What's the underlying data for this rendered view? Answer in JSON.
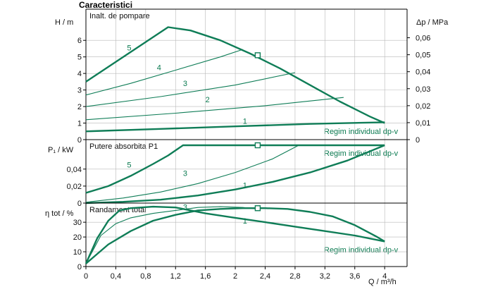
{
  "heading": "Caracteristici",
  "colors": {
    "curve": "#0f7d57",
    "axis": "#000000",
    "grid": "#b8b8b8",
    "panel_label": "#111111"
  },
  "x_axis": {
    "label": "Q / m³/h",
    "ticks": [
      "0",
      "0,4",
      "0,8",
      "1,2",
      "1,6",
      "2",
      "2,4",
      "2,8",
      "3,2",
      "3,6",
      "4"
    ]
  },
  "chart_data": [
    {
      "type": "line",
      "title": "Inalt. de pompare",
      "ylabel": "H / m",
      "ylabel_right": "Δp / MPa",
      "xlim": [
        0,
        4.3
      ],
      "ylim": [
        0,
        7.8
      ],
      "yticks": [
        "0",
        "1",
        "2",
        "3",
        "4",
        "5",
        "6"
      ],
      "yticks_right": [
        "0",
        "0,01",
        "0,02",
        "0,03",
        "0,04",
        "0,05",
        "0,06"
      ],
      "annotation": "Regim individual dp-v",
      "series": [
        {
          "name": "5",
          "x": [
            0,
            1.1,
            1.4,
            1.8,
            2.2,
            2.6,
            3.0,
            3.4,
            3.8,
            4.0
          ],
          "y": [
            3.5,
            6.8,
            6.6,
            6.0,
            5.2,
            4.3,
            3.3,
            2.3,
            1.4,
            1.0
          ]
        },
        {
          "name": "4",
          "x": [
            0,
            0.6,
            1.2,
            1.8,
            2.1
          ],
          "y": [
            2.7,
            3.4,
            4.2,
            5.0,
            5.45
          ]
        },
        {
          "name": "3",
          "x": [
            0,
            1.0,
            2.0,
            2.8
          ],
          "y": [
            2.0,
            2.6,
            3.3,
            4.05
          ]
        },
        {
          "name": "2",
          "x": [
            0,
            1.2,
            2.4,
            3.45
          ],
          "y": [
            1.2,
            1.6,
            2.05,
            2.55
          ]
        },
        {
          "name": "1",
          "x": [
            0,
            1.0,
            2.0,
            3.0,
            4.0
          ],
          "y": [
            0.5,
            0.65,
            0.8,
            0.95,
            1.05
          ]
        }
      ],
      "marker": {
        "x": 2.3,
        "y": 5.1
      },
      "labels_at": {
        "5": [
          0.55,
          5.4
        ],
        "4": [
          0.95,
          4.2
        ],
        "3": [
          1.3,
          3.25
        ],
        "2": [
          1.6,
          2.25
        ],
        "1": [
          2.1,
          0.95
        ]
      }
    },
    {
      "type": "line",
      "title": "Putere absorbita P1",
      "ylabel": "P₁ / kW",
      "xlim": [
        0,
        4.3
      ],
      "ylim": [
        0,
        0.073
      ],
      "yticks": [
        "0",
        "0,02",
        "0,04"
      ],
      "annotation": "Regim individual dp-v",
      "series": [
        {
          "name": "5",
          "x": [
            0,
            0.3,
            0.6,
            0.9,
            1.1,
            1.2,
            1.3,
            1.4,
            4.0
          ],
          "y": [
            0.012,
            0.02,
            0.032,
            0.046,
            0.056,
            0.062,
            0.068,
            0.068,
            0.068
          ]
        },
        {
          "name": "3",
          "x": [
            0,
            0.5,
            1.0,
            1.5,
            2.0,
            2.5,
            2.85
          ],
          "y": [
            0.001,
            0.006,
            0.013,
            0.023,
            0.036,
            0.052,
            0.068
          ]
        },
        {
          "name": "1",
          "x": [
            0,
            0.5,
            1.0,
            1.5,
            2.0,
            2.5,
            3.0,
            3.5,
            4.0
          ],
          "y": [
            0.0,
            0.0015,
            0.004,
            0.009,
            0.016,
            0.025,
            0.036,
            0.05,
            0.068
          ]
        }
      ],
      "marker": {
        "x": 2.3,
        "y": 0.068
      },
      "labels_at": {
        "5": [
          0.55,
          0.042
        ],
        "3": [
          1.3,
          0.032
        ],
        "1": [
          2.1,
          0.018
        ]
      }
    },
    {
      "type": "line",
      "title": "Randament total",
      "ylabel": "η tot / %",
      "xlim": [
        0,
        4.3
      ],
      "ylim": [
        0,
        42
      ],
      "yticks": [
        "0",
        "10",
        "20",
        "30"
      ],
      "annotation": "Regim individual dp-v",
      "series": [
        {
          "name": "",
          "x": [
            0,
            0.3,
            0.6,
            0.9,
            1.2,
            1.5,
            1.8,
            2.1,
            2.4,
            2.7,
            3.0,
            3.3,
            3.6,
            3.9,
            4.0
          ],
          "y": [
            2,
            15,
            24,
            31,
            35,
            38,
            39,
            39.5,
            39.5,
            39,
            37,
            34,
            28,
            20,
            17
          ]
        },
        {
          "name": "3",
          "x": [
            0,
            0.2,
            0.4,
            0.6,
            0.9,
            1.2,
            1.5,
            1.8,
            2.1,
            2.3
          ],
          "y": [
            2,
            21,
            29,
            33,
            36,
            38,
            40,
            40.5,
            40,
            39
          ]
        },
        {
          "name": "1",
          "x": [
            0,
            0.15,
            0.3,
            0.45,
            0.6,
            0.9,
            1.2,
            1.6,
            2.0,
            2.4,
            2.8,
            3.2,
            3.6,
            4.0
          ],
          "y": [
            2,
            19,
            31,
            38,
            39.5,
            40.5,
            40,
            36,
            33,
            30,
            27,
            24,
            21,
            17
          ]
        }
      ],
      "marker": {
        "x": 2.3,
        "y": 39.5
      },
      "labels_at": {
        "3": [
          1.3,
          38.5
        ],
        "1": [
          2.1,
          29
        ]
      }
    }
  ]
}
